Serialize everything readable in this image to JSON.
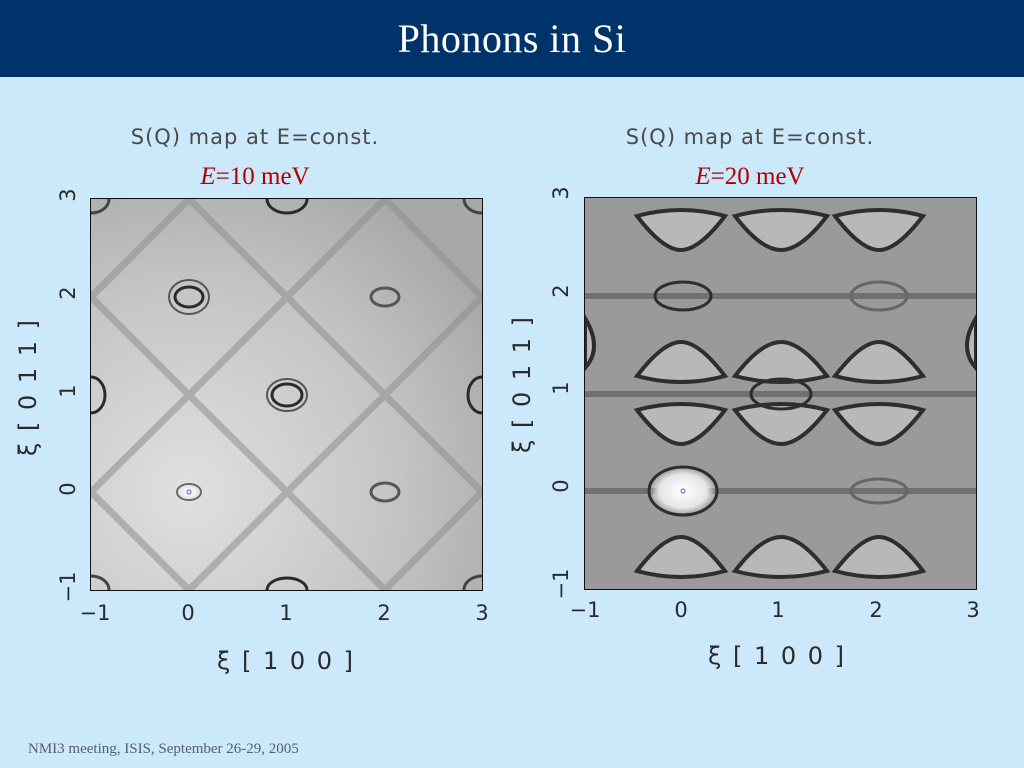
{
  "slide": {
    "title": "Phonons in Si",
    "footer": "NMI3 meeting, ISIS, September 26-29, 2005"
  },
  "maps": [
    {
      "heading": "S(Q) map at E=const.",
      "energy_symbol": "E",
      "energy_value": "=10 meV",
      "x_label": "ξ [ 1 0 0 ]",
      "y_label": "ξ [ 0 1 1 ]",
      "x_ticks": [
        "−1",
        "0",
        "1",
        "2",
        "3"
      ],
      "y_ticks": [
        "−1",
        "0",
        "1",
        "2",
        "3"
      ]
    },
    {
      "heading": "S(Q) map at E=const.",
      "energy_symbol": "E",
      "energy_value": "=20 meV",
      "x_label": "ξ [ 1 0 0 ]",
      "y_label": "ξ [ 0 1 1 ]",
      "x_ticks": [
        "−1",
        "0",
        "1",
        "2",
        "3"
      ],
      "y_ticks": [
        "−1",
        "0",
        "1",
        "2",
        "3"
      ]
    }
  ]
}
